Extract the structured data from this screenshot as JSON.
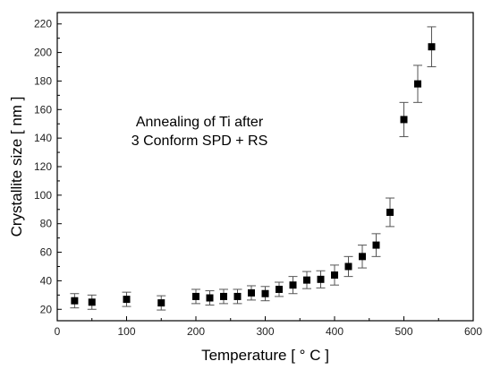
{
  "chart_data": {
    "type": "scatter",
    "xlabel": "Temperature [ ° C ]",
    "ylabel": "Crystallite size [ nm ]",
    "xlim": [
      0,
      600
    ],
    "ylim": [
      12,
      228
    ],
    "x_ticks": [
      0,
      100,
      200,
      300,
      400,
      500,
      600
    ],
    "y_ticks": [
      20,
      40,
      60,
      80,
      100,
      120,
      140,
      160,
      180,
      200,
      220
    ],
    "grid": false,
    "marker": "square",
    "colors": {
      "marker": "#000000",
      "errorbar": "#555555",
      "axis": "#000000"
    },
    "annotation": [
      "Annealing of Ti after",
      "3 Conform SPD + RS"
    ],
    "series": [
      {
        "points": [
          {
            "x": 25,
            "y": 26,
            "err": 5
          },
          {
            "x": 50,
            "y": 25,
            "err": 5
          },
          {
            "x": 100,
            "y": 27,
            "err": 5
          },
          {
            "x": 150,
            "y": 24.5,
            "err": 5
          },
          {
            "x": 200,
            "y": 29,
            "err": 5
          },
          {
            "x": 220,
            "y": 28,
            "err": 5
          },
          {
            "x": 240,
            "y": 29,
            "err": 5
          },
          {
            "x": 260,
            "y": 29,
            "err": 5
          },
          {
            "x": 280,
            "y": 31.5,
            "err": 5
          },
          {
            "x": 300,
            "y": 31,
            "err": 5
          },
          {
            "x": 320,
            "y": 34,
            "err": 5
          },
          {
            "x": 340,
            "y": 37,
            "err": 6
          },
          {
            "x": 360,
            "y": 40.5,
            "err": 6
          },
          {
            "x": 380,
            "y": 41,
            "err": 6
          },
          {
            "x": 400,
            "y": 44,
            "err": 7
          },
          {
            "x": 420,
            "y": 50,
            "err": 7
          },
          {
            "x": 440,
            "y": 57,
            "err": 8
          },
          {
            "x": 460,
            "y": 65,
            "err": 8
          },
          {
            "x": 480,
            "y": 88,
            "err": 10
          },
          {
            "x": 500,
            "y": 153,
            "err": 12
          },
          {
            "x": 520,
            "y": 178,
            "err": 13
          },
          {
            "x": 540,
            "y": 204,
            "err": 14
          }
        ]
      }
    ]
  }
}
